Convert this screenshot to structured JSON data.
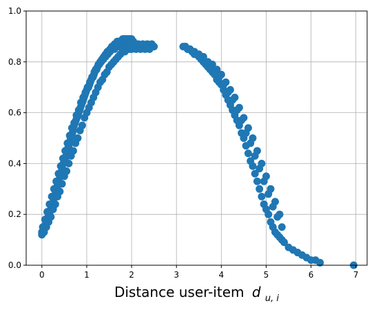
{
  "chart_data": {
    "type": "scatter",
    "title": "",
    "xlabel": "Distance user-item",
    "xlabel_math": {
      "symbol": "d",
      "subscript": "u, i"
    },
    "ylabel": "",
    "xlim": [
      -0.35,
      7.25
    ],
    "ylim": [
      0.0,
      1.0
    ],
    "xticks": [
      0,
      1,
      2,
      3,
      4,
      5,
      6,
      7
    ],
    "yticks": [
      0.0,
      0.2,
      0.4,
      0.6,
      0.8,
      1.0
    ],
    "ytick_labels": [
      "0.0",
      "0.2",
      "0.4",
      "0.6",
      "0.8",
      "1.0"
    ],
    "grid": true,
    "legend": "none",
    "marker_color": "#1f77b4",
    "series": [
      {
        "x": [
          0.0,
          0.03,
          0.06,
          0.08,
          0.1,
          0.12,
          0.14,
          0.16,
          0.18,
          0.2,
          0.22,
          0.24,
          0.26,
          0.28,
          0.3,
          0.32,
          0.34,
          0.36,
          0.38,
          0.4,
          0.42,
          0.44,
          0.46,
          0.48,
          0.5,
          0.52,
          0.54,
          0.56,
          0.58,
          0.6,
          0.62,
          0.64,
          0.66,
          0.68,
          0.7,
          0.72,
          0.74,
          0.76,
          0.78,
          0.8,
          0.82,
          0.84,
          0.86,
          0.88,
          0.9,
          0.92,
          0.94,
          0.96,
          0.98,
          1.0,
          1.02,
          1.04,
          1.06,
          1.08,
          1.1,
          1.12,
          1.14,
          1.16,
          1.18,
          1.2,
          1.22,
          1.24,
          1.26,
          1.28,
          1.3,
          1.32,
          1.34,
          1.36,
          1.38,
          1.4,
          1.42,
          1.44,
          1.46,
          1.48,
          1.5,
          1.52,
          1.54,
          1.56,
          1.58,
          1.6,
          1.62,
          1.64,
          1.66,
          1.68,
          1.7,
          1.72,
          1.74,
          1.76,
          1.78,
          1.8,
          1.82,
          1.84,
          1.86,
          1.88,
          1.9,
          1.92,
          1.94,
          1.96,
          1.98,
          2.0,
          2.04,
          2.08,
          2.12,
          2.16,
          2.2,
          2.24,
          2.28,
          2.32,
          2.36,
          2.4,
          2.44,
          2.48,
          2.5,
          0.0,
          0.05,
          0.1,
          0.15,
          0.2,
          0.25,
          0.3,
          0.35,
          0.4,
          0.45,
          0.5,
          0.55,
          0.6,
          0.65,
          0.7,
          0.75,
          0.8,
          0.85,
          0.9,
          0.95,
          1.0,
          1.05,
          1.1,
          1.15,
          1.2,
          1.25,
          1.3,
          1.35,
          1.4,
          1.45,
          1.5,
          1.55,
          1.6,
          1.65,
          1.7,
          1.75,
          1.8,
          1.85,
          1.9,
          1.95,
          2.0,
          2.1,
          2.2,
          2.3,
          2.4,
          0.02,
          0.07,
          0.12,
          0.17,
          0.22,
          0.27,
          0.32,
          0.37,
          0.42,
          0.47,
          0.52,
          0.57,
          0.62,
          0.67,
          0.72,
          0.77,
          0.82,
          0.87,
          0.92,
          0.97,
          1.02,
          1.07,
          1.12,
          1.17,
          1.22,
          1.27,
          1.32,
          1.37,
          1.42,
          1.47,
          1.52,
          1.57,
          1.62,
          1.67,
          1.72,
          1.77,
          1.82,
          1.87,
          1.92,
          1.97,
          2.05,
          2.15,
          2.25,
          2.35,
          2.45,
          3.15,
          3.2,
          3.25,
          3.3,
          3.35,
          3.4,
          3.45,
          3.5,
          3.55,
          3.6,
          3.65,
          3.7,
          3.75,
          3.8,
          3.85,
          3.9,
          3.95,
          4.0,
          4.05,
          4.1,
          4.15,
          4.2,
          4.25,
          4.3,
          4.35,
          4.4,
          4.45,
          4.5,
          4.55,
          4.6,
          4.65,
          4.7,
          4.75,
          4.8,
          4.85,
          4.9,
          4.95,
          5.0,
          5.05,
          5.1,
          5.15,
          5.2,
          5.25,
          5.3,
          5.35,
          5.4,
          5.5,
          5.6,
          5.7,
          5.8,
          5.9,
          6.0,
          6.1,
          6.2,
          6.95,
          3.2,
          3.3,
          3.4,
          3.5,
          3.6,
          3.7,
          3.8,
          3.9,
          4.0,
          4.1,
          4.2,
          4.3,
          4.4,
          4.5,
          4.6,
          4.7,
          4.8,
          4.9,
          5.0,
          5.1,
          5.2,
          5.3,
          3.25,
          3.35,
          3.45,
          3.55,
          3.65,
          3.75,
          3.85,
          3.95,
          4.05,
          4.15,
          4.25,
          4.35,
          4.45,
          4.55,
          4.65,
          4.75,
          4.85,
          4.95,
          5.05,
          5.15,
          5.25,
          5.35
        ],
        "y": [
          0.13,
          0.14,
          0.15,
          0.16,
          0.17,
          0.18,
          0.19,
          0.2,
          0.21,
          0.22,
          0.23,
          0.24,
          0.26,
          0.27,
          0.28,
          0.29,
          0.31,
          0.32,
          0.33,
          0.35,
          0.36,
          0.37,
          0.38,
          0.4,
          0.41,
          0.42,
          0.43,
          0.45,
          0.46,
          0.47,
          0.48,
          0.5,
          0.51,
          0.52,
          0.53,
          0.55,
          0.56,
          0.57,
          0.58,
          0.59,
          0.6,
          0.61,
          0.62,
          0.63,
          0.64,
          0.65,
          0.66,
          0.67,
          0.68,
          0.69,
          0.7,
          0.7,
          0.71,
          0.72,
          0.73,
          0.74,
          0.74,
          0.75,
          0.76,
          0.77,
          0.77,
          0.78,
          0.79,
          0.79,
          0.8,
          0.8,
          0.81,
          0.81,
          0.82,
          0.82,
          0.83,
          0.83,
          0.84,
          0.84,
          0.84,
          0.85,
          0.85,
          0.86,
          0.86,
          0.86,
          0.87,
          0.87,
          0.87,
          0.88,
          0.88,
          0.88,
          0.88,
          0.88,
          0.88,
          0.89,
          0.89,
          0.89,
          0.89,
          0.89,
          0.89,
          0.89,
          0.89,
          0.89,
          0.89,
          0.89,
          0.88,
          0.87,
          0.86,
          0.86,
          0.86,
          0.86,
          0.86,
          0.86,
          0.86,
          0.86,
          0.86,
          0.86,
          0.86,
          0.12,
          0.13,
          0.15,
          0.17,
          0.19,
          0.22,
          0.24,
          0.27,
          0.29,
          0.32,
          0.35,
          0.37,
          0.4,
          0.43,
          0.45,
          0.48,
          0.5,
          0.53,
          0.55,
          0.58,
          0.6,
          0.62,
          0.64,
          0.66,
          0.68,
          0.7,
          0.72,
          0.73,
          0.75,
          0.76,
          0.78,
          0.79,
          0.8,
          0.81,
          0.82,
          0.83,
          0.84,
          0.84,
          0.85,
          0.85,
          0.85,
          0.85,
          0.85,
          0.85,
          0.85,
          0.15,
          0.18,
          0.21,
          0.24,
          0.27,
          0.3,
          0.33,
          0.36,
          0.39,
          0.42,
          0.45,
          0.48,
          0.51,
          0.54,
          0.56,
          0.59,
          0.61,
          0.64,
          0.66,
          0.68,
          0.7,
          0.72,
          0.74,
          0.76,
          0.77,
          0.79,
          0.8,
          0.81,
          0.82,
          0.83,
          0.84,
          0.85,
          0.85,
          0.86,
          0.86,
          0.86,
          0.87,
          0.87,
          0.87,
          0.87,
          0.87,
          0.87,
          0.87,
          0.87,
          0.87,
          0.86,
          0.86,
          0.85,
          0.85,
          0.84,
          0.83,
          0.83,
          0.82,
          0.81,
          0.8,
          0.79,
          0.78,
          0.77,
          0.76,
          0.75,
          0.73,
          0.72,
          0.71,
          0.69,
          0.67,
          0.65,
          0.63,
          0.61,
          0.59,
          0.57,
          0.55,
          0.52,
          0.5,
          0.47,
          0.44,
          0.41,
          0.39,
          0.36,
          0.33,
          0.3,
          0.27,
          0.24,
          0.22,
          0.2,
          0.17,
          0.15,
          0.13,
          0.12,
          0.11,
          0.1,
          0.09,
          0.07,
          0.06,
          0.05,
          0.04,
          0.03,
          0.02,
          0.02,
          0.01,
          0.0,
          0.86,
          0.85,
          0.84,
          0.83,
          0.82,
          0.8,
          0.79,
          0.77,
          0.75,
          0.72,
          0.69,
          0.66,
          0.62,
          0.58,
          0.54,
          0.5,
          0.45,
          0.4,
          0.35,
          0.3,
          0.25,
          0.2,
          0.85,
          0.84,
          0.83,
          0.82,
          0.8,
          0.78,
          0.76,
          0.74,
          0.71,
          0.68,
          0.65,
          0.61,
          0.57,
          0.52,
          0.48,
          0.43,
          0.38,
          0.33,
          0.28,
          0.23,
          0.19,
          0.15
        ]
      }
    ]
  }
}
